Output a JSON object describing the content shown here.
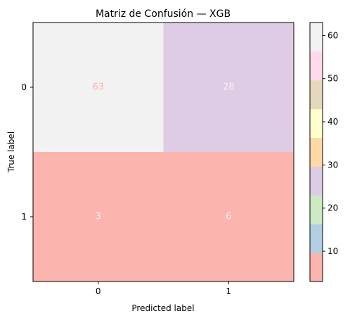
{
  "chart_data": {
    "type": "heatmap",
    "title": "Matriz de Confusión — XGB",
    "xlabel": "Predicted label",
    "ylabel": "True label",
    "x_categories": [
      "0",
      "1"
    ],
    "y_categories": [
      "0",
      "1"
    ],
    "values": [
      [
        63,
        28
      ],
      [
        3,
        6
      ]
    ],
    "colormap": "Pastel1",
    "colormap_colors": [
      "#fbb4ae",
      "#b3cde3",
      "#ccebc5",
      "#decbe4",
      "#fed9a6",
      "#ffffcc",
      "#e5d8bd",
      "#fddaec",
      "#f2f2f2"
    ],
    "text_colors": [
      [
        "#fbb4ae",
        "#f2f2f2"
      ],
      [
        "#f2f2f2",
        "#f2f2f2"
      ]
    ],
    "colorbar": {
      "range": [
        3,
        63
      ],
      "ticks": [
        10,
        20,
        30,
        40,
        50,
        60
      ]
    }
  }
}
